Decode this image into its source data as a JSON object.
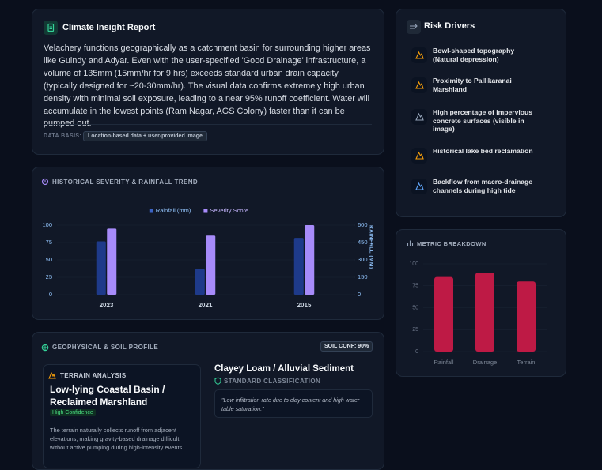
{
  "report": {
    "title": "Climate Insight Report",
    "body": "Velachery functions geographically as a catchment basin for surrounding higher areas like Guindy and Adyar. Even with the user-specified 'Good Drainage' infrastructure, a volume of 135mm (15mm/hr for 9 hrs) exceeds standard urban drain capacity (typically designed for ~20-30mm/hr). The visual data confirms extremely high urban density with minimal soil exposure, leading to a near 95% runoff coefficient. Water will accumulate in the lowest points (Ram Nagar, AGS Colony) faster than it can be pumped out.",
    "basis_label": "DATA BASIS:",
    "basis_value": "Location-based data + user-provided image"
  },
  "risk_drivers": {
    "title": "Risk Drivers",
    "items": [
      "Bowl-shaped topography (Natural depression)",
      "Proximity to Pallikaranai Marshland",
      "High percentage of impervious concrete surfaces (visible in image)",
      "Historical lake bed reclamation",
      "Backflow from macro-drainage channels during high tide"
    ]
  },
  "geo": {
    "title": "GEOPHYSICAL & SOIL PROFILE",
    "badge": "SOIL CONF: 90%",
    "terrain_label": "TERRAIN ANALYSIS",
    "terrain_title": "Low-lying Coastal Basin / Reclaimed Marshland",
    "confidence": "High Confidence",
    "terrain_text": "The terrain naturally collects runoff from adjacent elevations, making gravity-based drainage difficult without active pumping during high-intensity events.",
    "soil_title": "Clayey Loam / Alluvial Sediment",
    "soil_class": "STANDARD CLASSIFICATION",
    "soil_note": "\"Low infiltration rate due to clay content and high water table saturation.\""
  },
  "chart_data": [
    {
      "type": "bar",
      "title": "HISTORICAL SEVERITY & RAINFALL TREND",
      "categories": [
        "2023",
        "2021",
        "2015"
      ],
      "series": [
        {
          "name": "Rainfall (mm)",
          "color": "#1e3a8a",
          "values": [
            460,
            220,
            490
          ],
          "axis": "y2"
        },
        {
          "name": "Severity Score",
          "color": "#a78bfa",
          "values": [
            95,
            85,
            100
          ]
        }
      ],
      "ylim": [
        0,
        100
      ],
      "yticks": [
        0,
        25,
        50,
        75,
        100
      ],
      "y2lim": [
        0,
        600
      ],
      "y2ticks": [
        0,
        150,
        300,
        450,
        600
      ],
      "y2label": "RAINFALL (MM)",
      "legend": "top",
      "grid": true
    },
    {
      "type": "bar",
      "title": "METRIC BREAKDOWN",
      "categories": [
        "Rainfall",
        "Drainage",
        "Terrain"
      ],
      "values": [
        85,
        90,
        80
      ],
      "color": "#be1a45",
      "ylim": [
        0,
        100
      ],
      "yticks": [
        0,
        25,
        50,
        75,
        100
      ],
      "grid": true
    }
  ]
}
